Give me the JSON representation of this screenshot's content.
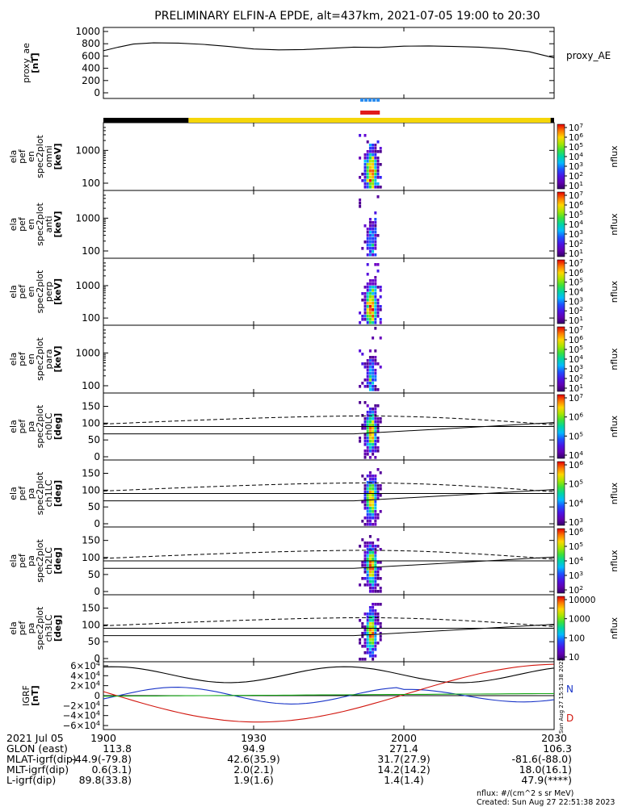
{
  "title": "PRELIMINARY ELFIN-A EPDE, alt=437km, 2021-07-05 19:00 to 20:30",
  "colors": {
    "ae": "#000000",
    "ephem_black": "#000000",
    "ephem_yellow": "#f5d60a",
    "science_blue": "#2a8cf0",
    "science_red": "#e11b1b",
    "grf_total": "#000000",
    "grf_n": "#1a35c8",
    "grf_d": "#d1150d",
    "grf_t": "#15a815"
  },
  "chart_data": {
    "type": "stacked-timeseries",
    "x_label_rows": [
      {
        "label": "2021 Jul 05",
        "values": [
          "1900",
          "1930",
          "2000",
          "2030"
        ]
      },
      {
        "label": "GLON (east)",
        "values": [
          "113.8",
          "94.9",
          "271.4",
          "106.3"
        ]
      },
      {
        "label": "MLAT-igrf(dip)",
        "values": [
          "-44.9(-79.8)",
          "42.6(35.9)",
          "31.7(27.9)",
          "-81.6(-88.0)"
        ]
      },
      {
        "label": "MLT-igrf(dip)",
        "values": [
          "0.6(3.1)",
          "2.0(2.1)",
          "14.2(14.2)",
          "18.0(16.1)"
        ]
      },
      {
        "label": "L-igrf(dip)",
        "values": [
          "89.8(33.8)",
          "1.9(1.6)",
          "1.4(1.4)",
          "47.9(****)"
        ]
      }
    ],
    "x_tick_times": [
      0,
      30,
      60,
      90
    ],
    "x_range_min": [
      0,
      90
    ],
    "science_window_min": [
      51.3,
      55.2
    ],
    "ephem_bar": [
      {
        "color": "black",
        "from": 0,
        "to": 17
      },
      {
        "color": "yellow",
        "from": 17,
        "to": 89.3
      },
      {
        "color": "black",
        "from": 89.3,
        "to": 90
      }
    ],
    "panels": [
      {
        "id": "proxy_ae",
        "type": "line",
        "ylabel": [
          "proxy_ae",
          "[nT]"
        ],
        "yticks": [
          "1000",
          "800",
          "600",
          "400",
          "200",
          "0"
        ],
        "ytick_values": [
          1000,
          800,
          600,
          400,
          200,
          0
        ],
        "ylim": [
          0,
          1000
        ],
        "legend": "proxy_AE",
        "x": [
          0,
          3,
          6,
          10,
          15,
          20,
          25,
          30,
          35,
          40,
          45,
          50,
          55,
          60,
          65,
          70,
          75,
          80,
          85,
          90
        ],
        "y": [
          685,
          745,
          795,
          815,
          810,
          790,
          755,
          715,
          700,
          705,
          725,
          745,
          740,
          760,
          765,
          755,
          745,
          720,
          670,
          570
        ]
      },
      {
        "id": "en_omni",
        "type": "spectrogram",
        "ylabel": [
          "ela",
          "pef",
          "en",
          "spec2plot",
          "omni",
          "[keV]"
        ],
        "yticks": [
          "1000",
          "100"
        ],
        "log": true,
        "ylim": [
          60,
          7000
        ],
        "cbar_ticks": [
          "10^7",
          "10^6",
          "10^5",
          "10^4",
          "10^3",
          "10^2",
          "10^1"
        ],
        "cbar_label": "nflux"
      },
      {
        "id": "en_anti",
        "type": "spectrogram",
        "ylabel": [
          "ela",
          "pef",
          "en",
          "spec2plot",
          "anti",
          "[keV]"
        ],
        "yticks": [
          "1000",
          "100"
        ],
        "log": true,
        "ylim": [
          60,
          7000
        ],
        "cbar_ticks": [
          "10^7",
          "10^6",
          "10^5",
          "10^4",
          "10^3",
          "10^2",
          "10^1"
        ],
        "cbar_label": "nflux"
      },
      {
        "id": "en_perp",
        "type": "spectrogram",
        "ylabel": [
          "ela",
          "pef",
          "en",
          "spec2plot",
          "perp",
          "[keV]"
        ],
        "yticks": [
          "1000",
          "100"
        ],
        "log": true,
        "ylim": [
          60,
          7000
        ],
        "cbar_ticks": [
          "10^7",
          "10^6",
          "10^5",
          "10^4",
          "10^3",
          "10^2",
          "10^1"
        ],
        "cbar_label": "nflux"
      },
      {
        "id": "en_para",
        "type": "spectrogram",
        "ylabel": [
          "ela",
          "pef",
          "en",
          "spec2plot",
          "para",
          "[keV]"
        ],
        "yticks": [
          "1000",
          "100"
        ],
        "log": true,
        "ylim": [
          60,
          7000
        ],
        "cbar_ticks": [
          "10^7",
          "10^6",
          "10^5",
          "10^4",
          "10^3",
          "10^2",
          "10^1"
        ],
        "cbar_label": "nflux"
      },
      {
        "id": "pa_ch0",
        "type": "spectrogram",
        "ylabel": [
          "ela",
          "pef",
          "pa",
          "spec2plot",
          "ch0LC",
          "[deg]"
        ],
        "yticks": [
          "150",
          "100",
          "50",
          "0"
        ],
        "ytick_values": [
          150,
          100,
          50,
          0
        ],
        "ylim": [
          0,
          180
        ],
        "cbar_ticks": [
          "10^7",
          "10^6",
          "10^5",
          "10^4"
        ],
        "cbar_label": "nflux"
      },
      {
        "id": "pa_ch1",
        "type": "spectrogram",
        "ylabel": [
          "ela",
          "pef",
          "pa",
          "spec2plot",
          "ch1LC",
          "[deg]"
        ],
        "yticks": [
          "150",
          "100",
          "50",
          "0"
        ],
        "ytick_values": [
          150,
          100,
          50,
          0
        ],
        "ylim": [
          0,
          180
        ],
        "cbar_ticks": [
          "10^6",
          "10^5",
          "10^4",
          "10^3"
        ],
        "cbar_label": "nflux"
      },
      {
        "id": "pa_ch2",
        "type": "spectrogram",
        "ylabel": [
          "ela",
          "pef",
          "pa",
          "spec2plot",
          "ch2LC",
          "[deg]"
        ],
        "yticks": [
          "150",
          "100",
          "50",
          "0"
        ],
        "ytick_values": [
          150,
          100,
          50,
          0
        ],
        "ylim": [
          0,
          180
        ],
        "cbar_ticks": [
          "10^6",
          "10^5",
          "10^4",
          "10^3",
          "10^2"
        ],
        "cbar_label": "nflux"
      },
      {
        "id": "pa_ch3",
        "type": "spectrogram",
        "ylabel": [
          "ela",
          "pef",
          "pa",
          "spec2plot",
          "ch3LC",
          "[deg]"
        ],
        "yticks": [
          "150",
          "100",
          "50",
          "0"
        ],
        "ytick_values": [
          150,
          100,
          50,
          0
        ],
        "ylim": [
          0,
          180
        ],
        "cbar_ticks": [
          "10000",
          "1000",
          "100",
          "10"
        ],
        "cbar_label": "nflux"
      },
      {
        "id": "igrf",
        "type": "line",
        "ylabel": [
          "IGRF",
          "[nT]"
        ],
        "yticks": [
          "6×10^4",
          "4×10^4",
          "2×10^4",
          "0",
          "−2×10^4",
          "−4×10^4",
          "−6×10^4"
        ],
        "ytick_values": [
          60000,
          40000,
          20000,
          0,
          -20000,
          -40000,
          -60000
        ],
        "ylim": [
          -68000,
          68000
        ],
        "series_labels": [
          "N",
          "D"
        ],
        "footnote_vertical": "Sun Aug 27 15:51:38 2023"
      }
    ],
    "footer_units": "nflux: #/(cm^2 s sr MeV)",
    "footer_created": "Created: Sun Aug 27 22:51:38 2023"
  }
}
